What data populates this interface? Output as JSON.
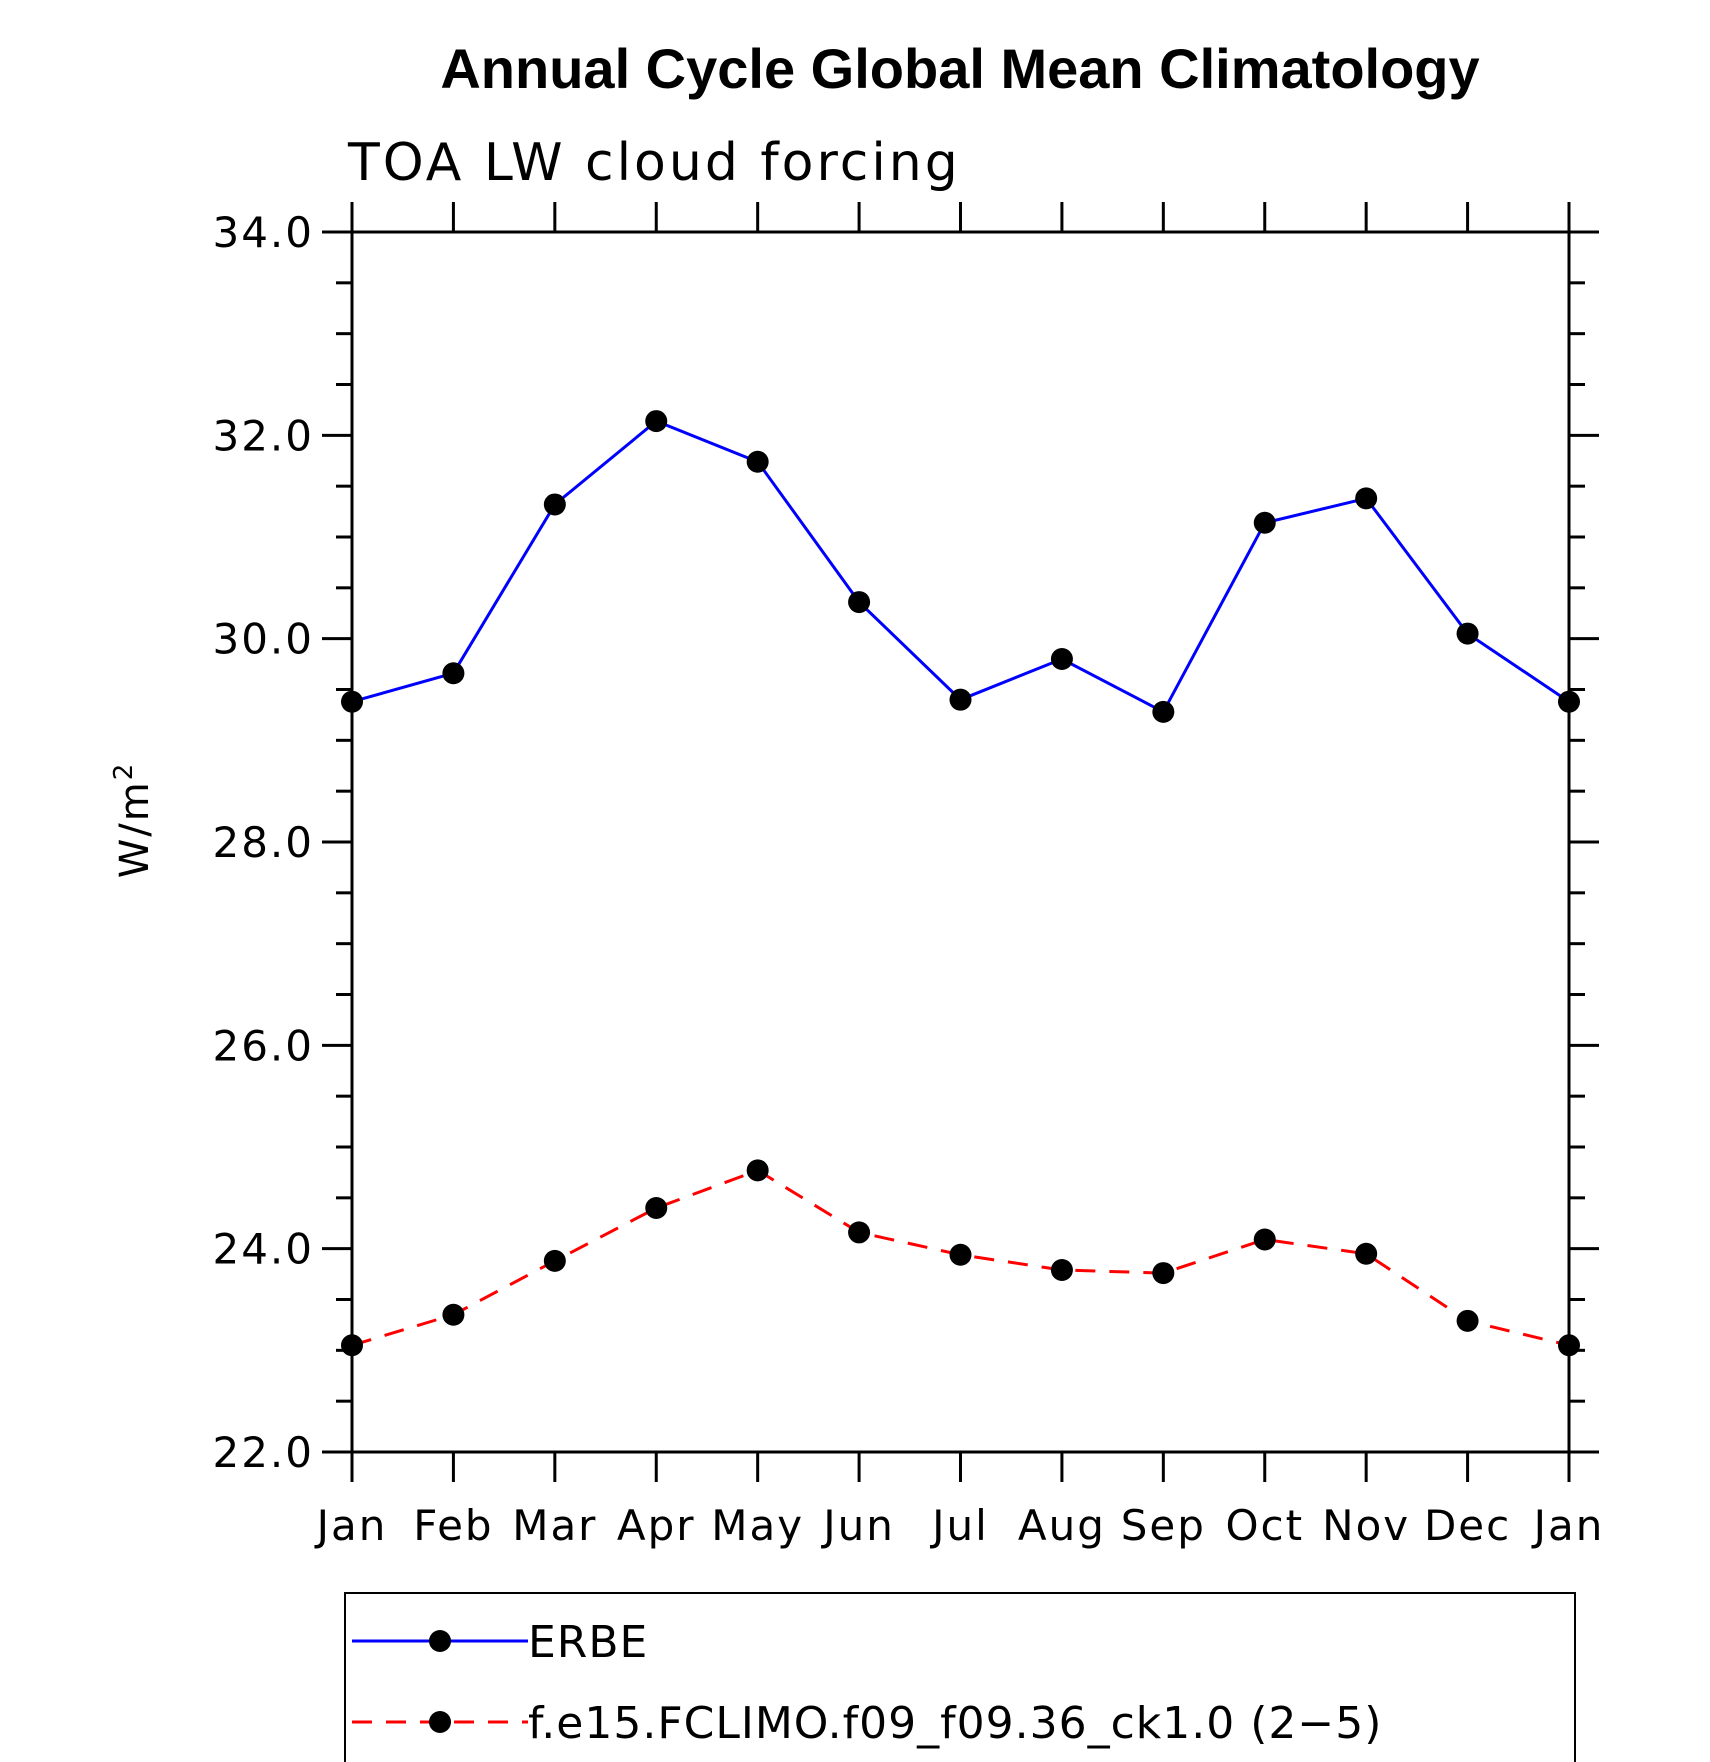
{
  "chart_data": {
    "type": "line",
    "title": "Annual Cycle Global Mean Climatology",
    "subtitle": "TOA LW cloud forcing",
    "ylabel": "W/m",
    "ylabel_superscript": "2",
    "ylim": [
      22.0,
      34.0
    ],
    "y_ticks": [
      "22.0",
      "24.0",
      "26.0",
      "28.0",
      "30.0",
      "32.0",
      "34.0"
    ],
    "categories": [
      "Jan",
      "Feb",
      "Mar",
      "Apr",
      "May",
      "Jun",
      "Jul",
      "Aug",
      "Sep",
      "Oct",
      "Nov",
      "Dec",
      "Jan"
    ],
    "series": [
      {
        "name": "ERBE",
        "color": "#0000ff",
        "style": "solid",
        "values": [
          29.38,
          29.66,
          31.32,
          32.14,
          31.74,
          30.36,
          29.4,
          29.8,
          29.28,
          31.14,
          31.38,
          30.05,
          29.38
        ]
      },
      {
        "name": "f.e15.FCLIMO.f09_f09.36_ck1.0 (2−5)",
        "color": "#ff0000",
        "style": "dashed",
        "values": [
          23.05,
          23.35,
          23.88,
          24.4,
          24.77,
          24.16,
          23.94,
          23.79,
          23.76,
          24.09,
          23.95,
          23.29,
          23.05
        ]
      }
    ],
    "legend": "bottom"
  }
}
